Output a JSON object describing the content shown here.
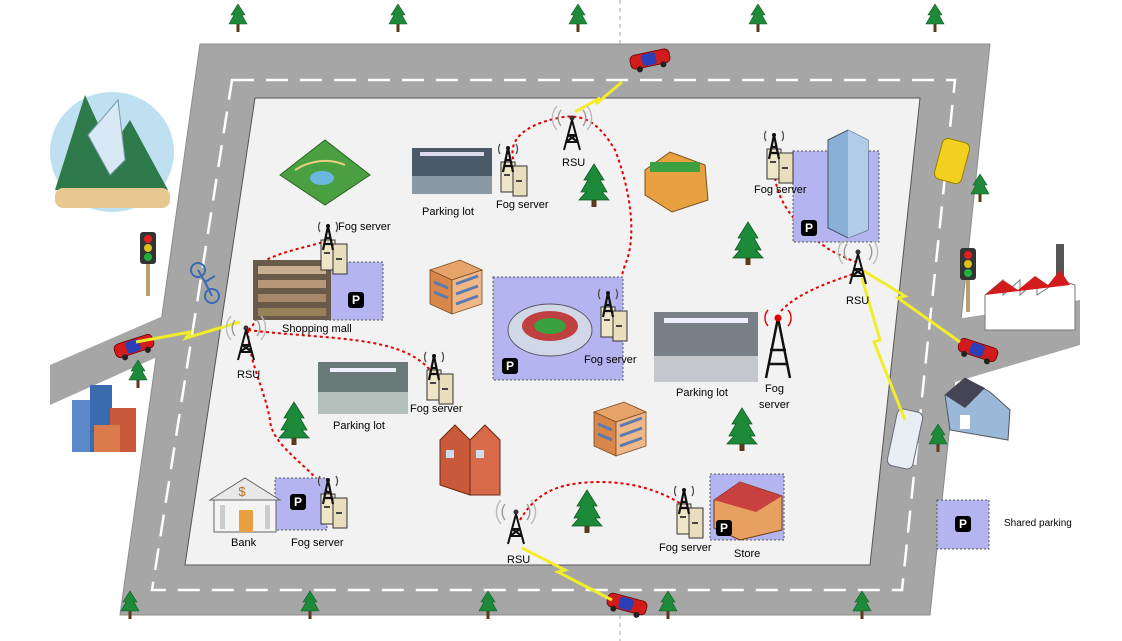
{
  "labels": {
    "fog_server": "Fog server",
    "fog_server_split_top": "Fog",
    "fog_server_split_bottom": "server",
    "rsu": "RSU",
    "parking_lot": "Parking lot",
    "shopping_mall": "Shopping mall",
    "bank": "Bank",
    "store": "Store",
    "shared_parking": "Shared parking",
    "parking_badge": "P",
    "dollar": "$"
  },
  "colors": {
    "road": "#a6a6a6",
    "road_edge": "#8c8c8c",
    "city_block": "#f2f2f2",
    "lane_marking": "#ffffff",
    "link": "#e00000",
    "wireless": "#f2ec2a",
    "shared_parking_fill": "#b4b4f0",
    "tree": "#1d8a3a"
  },
  "icons": [
    "tree-icon",
    "car-icon",
    "rsu-tower-icon",
    "fog-server-icon",
    "parking-badge-icon",
    "traffic-light-icon",
    "lightning-icon"
  ]
}
